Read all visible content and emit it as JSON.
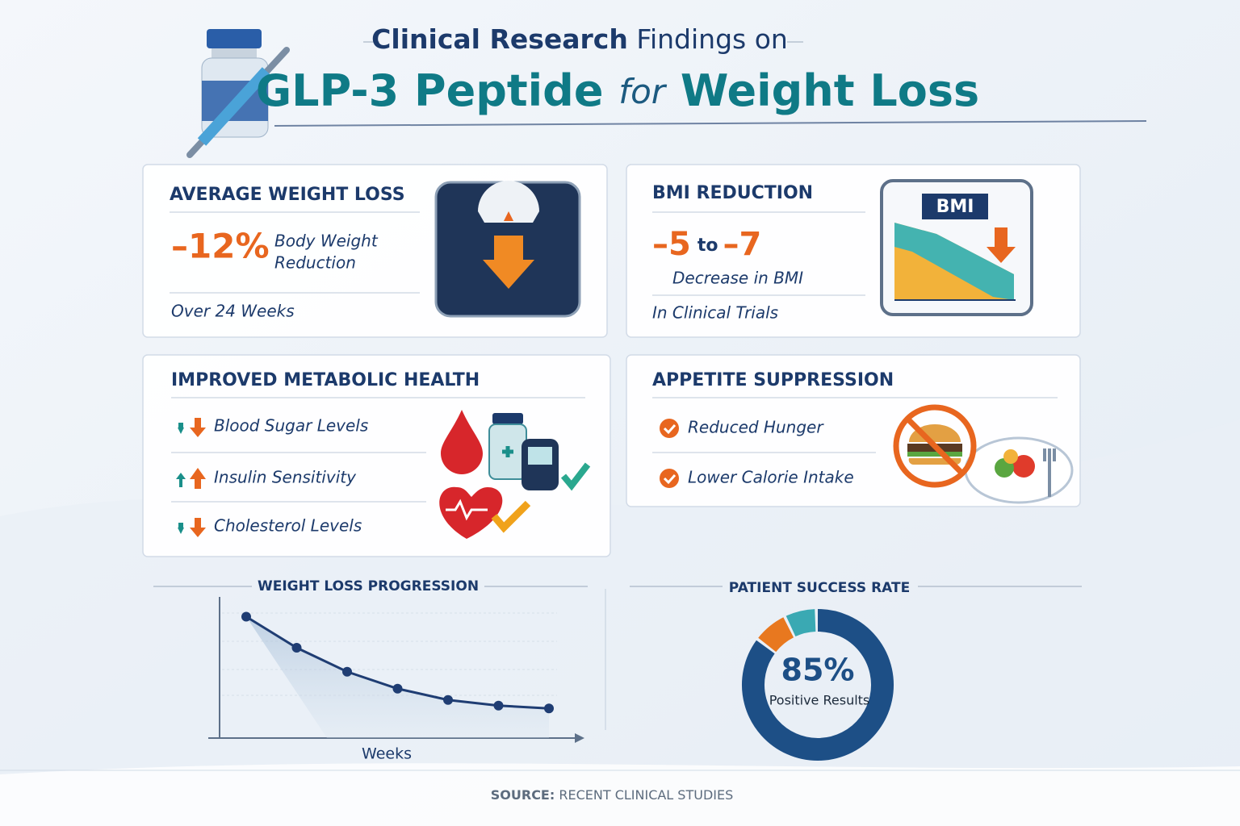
{
  "header": {
    "title_bold": "Clinical Research",
    "title_rest": "Findings on",
    "headline_a": "GLP-3 Peptide",
    "headline_b": "for",
    "headline_c": "Weight Loss"
  },
  "cards": [
    {
      "title": "AVERAGE WEIGHT LOSS",
      "stat": "–12%",
      "stat_text": [
        "Body Weight",
        "Reduction"
      ],
      "note": "Over 24 Weeks"
    },
    {
      "title": "BMI REDUCTION",
      "stat_from": "–5",
      "stat_join": "to",
      "stat_to": "–7",
      "stat_text": "Decrease in BMI",
      "note": "In Clinical Trials",
      "icon_label": "BMI"
    },
    {
      "title": "IMPROVED METABOLIC HEALTH",
      "items": [
        "Blood Sugar Levels",
        "Insulin Sensitivity",
        "Cholesterol Levels"
      ]
    },
    {
      "title": "APPETITE SUPPRESSION",
      "items": [
        "Reduced Hunger",
        "Lower Calorie Intake"
      ]
    }
  ],
  "chart_data": [
    {
      "type": "line",
      "title": "WEIGHT LOSS PROGRESSION",
      "x_label": "Weeks",
      "categories": [
        null,
        null,
        null,
        null,
        null,
        null,
        null
      ],
      "values": [
        86,
        64,
        47,
        35,
        27,
        23,
        21
      ],
      "ylim": [
        0,
        100
      ],
      "color": "#1f3d73"
    },
    {
      "type": "pie",
      "title": "PATIENT SUCCESS RATE",
      "values": [
        85
      ],
      "value_labels": [
        "85%"
      ],
      "label": "Positive Results",
      "color": "#1d4f86"
    }
  ],
  "footer": {
    "source_label": "SOURCE:",
    "source_text": "RECENT CLINICAL STUDIES"
  }
}
